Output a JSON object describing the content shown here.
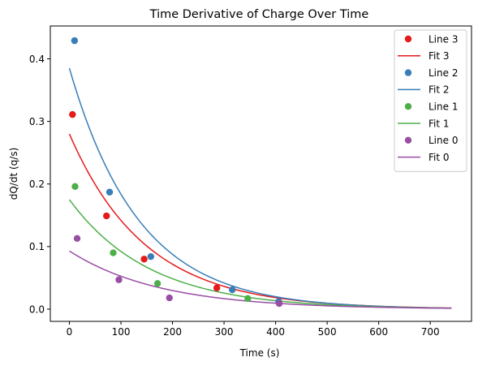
{
  "chart_data": {
    "type": "scatter",
    "title": "Time Derivative of Charge Over Time",
    "xlabel": "Time (s)",
    "ylabel": "dQ/dt (q/s)",
    "xlim": [
      -37,
      780
    ],
    "ylim": [
      -0.0195,
      0.4525
    ],
    "xticks": [
      0,
      100,
      200,
      300,
      400,
      500,
      600,
      700
    ],
    "xtick_labels": [
      "0",
      "100",
      "200",
      "300",
      "400",
      "500",
      "600",
      "700"
    ],
    "yticks": [
      0.0,
      0.1,
      0.2,
      0.3,
      0.4
    ],
    "ytick_labels": [
      "0.0",
      "0.1",
      "0.2",
      "0.3",
      "0.4"
    ],
    "grid": false,
    "legend_position": "top-right",
    "legend": [
      {
        "label": "Line 3",
        "kind": "marker",
        "color": "#e41a1c"
      },
      {
        "label": "Fit 3",
        "kind": "line",
        "color": "#e41a1c"
      },
      {
        "label": "Line 2",
        "kind": "marker",
        "color": "#377eb8"
      },
      {
        "label": "Fit 2",
        "kind": "line",
        "color": "#377eb8"
      },
      {
        "label": "Line 1",
        "kind": "marker",
        "color": "#4daf4a"
      },
      {
        "label": "Fit 1",
        "kind": "line",
        "color": "#4daf4a"
      },
      {
        "label": "Line 0",
        "kind": "marker",
        "color": "#984ea3"
      },
      {
        "label": "Fit 0",
        "kind": "line",
        "color": "#984ea3"
      }
    ],
    "series": [
      {
        "id": "3",
        "color": "#e41a1c",
        "points": [
          [
            6,
            0.311
          ],
          [
            72,
            0.149
          ],
          [
            145,
            0.08
          ],
          [
            286,
            0.034
          ]
        ],
        "fit": {
          "amplitude": 0.28,
          "rate": 0.0068,
          "x_range": [
            0,
            741
          ]
        }
      },
      {
        "id": "2",
        "color": "#377eb8",
        "points": [
          [
            10,
            0.429
          ],
          [
            78,
            0.187
          ],
          [
            158,
            0.084
          ],
          [
            316,
            0.031
          ],
          [
            406,
            0.012
          ]
        ],
        "fit": {
          "amplitude": 0.385,
          "rate": 0.0074,
          "x_range": [
            0,
            741
          ]
        }
      },
      {
        "id": "1",
        "color": "#4daf4a",
        "points": [
          [
            11,
            0.196
          ],
          [
            85,
            0.09
          ],
          [
            171,
            0.041
          ],
          [
            346,
            0.017
          ]
        ],
        "fit": {
          "amplitude": 0.175,
          "rate": 0.0064,
          "x_range": [
            0,
            741
          ]
        }
      },
      {
        "id": "0",
        "color": "#984ea3",
        "points": [
          [
            15,
            0.113
          ],
          [
            96,
            0.047
          ],
          [
            194,
            0.018
          ],
          [
            407,
            0.009
          ]
        ],
        "fit": {
          "amplitude": 0.093,
          "rate": 0.0057,
          "x_range": [
            0,
            741
          ]
        }
      }
    ]
  }
}
